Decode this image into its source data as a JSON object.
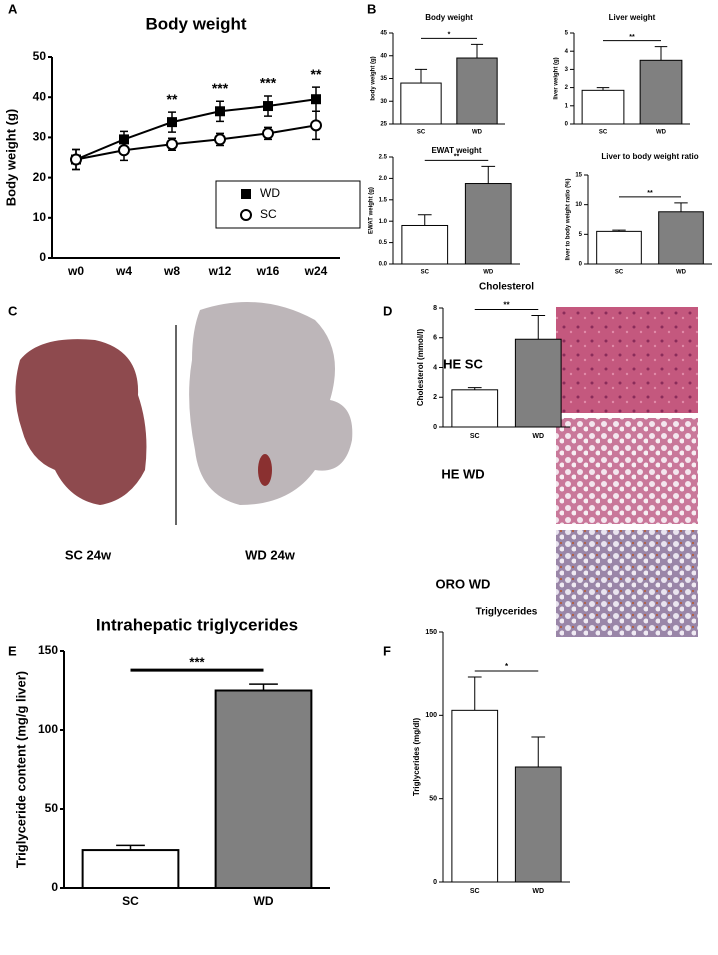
{
  "figure": {
    "panel_labels": [
      "A",
      "B",
      "C",
      "D",
      "E",
      "F"
    ],
    "photo_labels": [
      "SC 24w",
      "WD 24w"
    ],
    "histology_labels": [
      "HE SC",
      "HE WD",
      "ORO WD"
    ]
  },
  "chart_data": [
    {
      "type": "line",
      "title": "Body weight",
      "y_label": "Body weight (g)",
      "categories": [
        "w0",
        "w4",
        "w8",
        "w12",
        "w16",
        "w24"
      ],
      "series": [
        {
          "name": "WD",
          "color": "#000000",
          "marker": "square",
          "values": [
            24.5,
            29.5,
            33.8,
            36.5,
            37.8,
            39.5
          ],
          "errors": [
            2.5,
            2,
            2.5,
            2.5,
            2.5,
            3
          ]
        },
        {
          "name": "SC",
          "color": "#000000",
          "marker": "open-circle",
          "values": [
            24.5,
            26.8,
            28.3,
            29.5,
            31,
            33
          ],
          "errors": [
            2.5,
            2.5,
            1.5,
            1.5,
            1.5,
            3.5
          ]
        }
      ],
      "annotations": [
        null,
        null,
        "**",
        "***",
        "***",
        "**"
      ],
      "ylim": [
        0,
        50
      ],
      "yticks": [
        0,
        10,
        20,
        30,
        40,
        50
      ],
      "legend": "lower-right"
    },
    {
      "type": "bar",
      "title": "Body weight",
      "y_label": "body weight (g)",
      "categories": [
        "SC",
        "WD"
      ],
      "values": [
        34,
        39.5
      ],
      "errors": [
        3,
        3
      ],
      "colors": [
        "#ffffff",
        "#808080"
      ],
      "significance": "*",
      "ylim": [
        25,
        45
      ],
      "yticks": [
        25,
        30,
        35,
        40,
        45
      ]
    },
    {
      "type": "bar",
      "title": "Liver weight",
      "y_label": "liver weight (g)",
      "categories": [
        "SC",
        "WD"
      ],
      "values": [
        1.85,
        3.5
      ],
      "errors": [
        0.15,
        0.75
      ],
      "colors": [
        "#ffffff",
        "#808080"
      ],
      "significance": "**",
      "ylim": [
        0,
        5
      ],
      "yticks": [
        0,
        1,
        2,
        3,
        4,
        5
      ]
    },
    {
      "type": "bar",
      "title": "EWAT weight",
      "y_label": "EWAT weight (g)",
      "categories": [
        "SC",
        "WD"
      ],
      "values": [
        0.9,
        1.88
      ],
      "errors": [
        0.25,
        0.4
      ],
      "colors": [
        "#ffffff",
        "#808080"
      ],
      "significance": "**",
      "ylim": [
        0,
        2.5
      ],
      "yticks": [
        {
          "value": 0,
          "label": "0.0"
        },
        0.5,
        {
          "value": 1,
          "label": "1.0"
        },
        1.5,
        {
          "value": 2,
          "label": "2.0"
        },
        2.5
      ]
    },
    {
      "type": "bar",
      "title": "Liver to body weight ratio",
      "y_label": "liver to body weight ratio (%)",
      "categories": [
        "SC",
        "WD"
      ],
      "values": [
        5.5,
        8.8
      ],
      "errors": [
        0.2,
        1.5
      ],
      "colors": [
        "#ffffff",
        "#808080"
      ],
      "significance": "**",
      "ylim": [
        0,
        15
      ],
      "yticks": [
        0,
        5,
        10,
        15
      ]
    },
    {
      "type": "bar",
      "title": "Intrahepatic triglycerides",
      "y_label": "Triglyceride content (mg/g liver)",
      "categories": [
        "SC",
        "WD"
      ],
      "values": [
        24,
        125
      ],
      "errors": [
        3,
        4
      ],
      "colors": [
        "#ffffff",
        "#808080"
      ],
      "significance": "***",
      "ylim": [
        0,
        150
      ],
      "yticks": [
        0,
        50,
        100,
        150
      ]
    },
    {
      "type": "bar",
      "title": "Cholesterol",
      "y_label": "Cholesterol (mmol/l)",
      "categories": [
        "SC",
        "WD"
      ],
      "values": [
        2.5,
        5.9
      ],
      "errors": [
        0.15,
        1.6
      ],
      "colors": [
        "#ffffff",
        "#808080"
      ],
      "significance": "**",
      "ylim": [
        0,
        8
      ],
      "yticks": [
        0,
        2,
        4,
        6,
        8
      ]
    },
    {
      "type": "bar",
      "title": "Triglycerides",
      "y_label": "Triglycerides (mg/dl)",
      "categories": [
        "SC",
        "WD"
      ],
      "values": [
        103,
        69
      ],
      "errors": [
        20,
        18
      ],
      "colors": [
        "#ffffff",
        "#808080"
      ],
      "significance": "*",
      "ylim": [
        0,
        150
      ],
      "yticks": [
        0,
        50,
        100,
        150
      ]
    }
  ]
}
